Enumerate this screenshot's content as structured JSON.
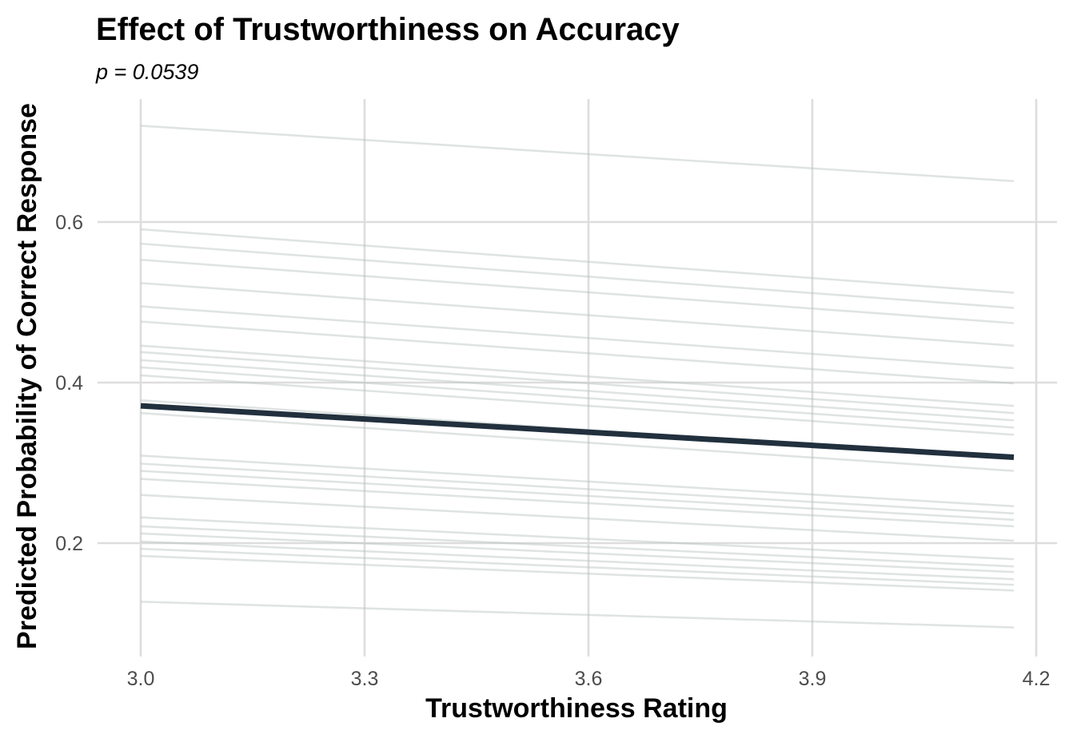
{
  "chart_data": {
    "type": "line",
    "title": "Effect of Trustworthiness on Accuracy",
    "subtitle": "p = 0.0539",
    "xlabel": "Trustworthiness Rating",
    "ylabel": "Predicted Probability of Correct Response",
    "xlim": [
      2.94,
      4.22
    ],
    "ylim": [
      0.085,
      0.75
    ],
    "x_ticks": [
      3.0,
      3.3,
      3.6,
      3.9,
      4.2
    ],
    "x_tick_labels": [
      "3.0",
      "3.3",
      "3.6",
      "3.9",
      "4.2"
    ],
    "y_ticks": [
      0.2,
      0.4,
      0.6
    ],
    "y_tick_labels": [
      "0.2",
      "0.4",
      "0.6"
    ],
    "grid": true,
    "legend": "none",
    "x_range": [
      3.0,
      4.17
    ],
    "overall": {
      "x": [
        3.0,
        4.17
      ],
      "values": [
        0.371,
        0.307
      ]
    },
    "subject_lines": [
      {
        "values": [
          0.72,
          0.651
        ]
      },
      {
        "values": [
          0.591,
          0.512
        ]
      },
      {
        "values": [
          0.573,
          0.493
        ]
      },
      {
        "values": [
          0.553,
          0.474
        ]
      },
      {
        "values": [
          0.524,
          0.446
        ]
      },
      {
        "values": [
          0.495,
          0.418
        ]
      },
      {
        "values": [
          0.476,
          0.399
        ]
      },
      {
        "values": [
          0.446,
          0.371
        ]
      },
      {
        "values": [
          0.438,
          0.362
        ]
      },
      {
        "values": [
          0.428,
          0.353
        ]
      },
      {
        "values": [
          0.419,
          0.344
        ]
      },
      {
        "values": [
          0.409,
          0.335
        ]
      },
      {
        "values": [
          0.378,
          0.306
        ]
      },
      {
        "values": [
          0.362,
          0.29
        ]
      },
      {
        "values": [
          0.309,
          0.246
        ]
      },
      {
        "values": [
          0.299,
          0.237
        ]
      },
      {
        "values": [
          0.29,
          0.229
        ]
      },
      {
        "values": [
          0.28,
          0.221
        ]
      },
      {
        "values": [
          0.26,
          0.203
        ]
      },
      {
        "values": [
          0.232,
          0.18
        ]
      },
      {
        "values": [
          0.221,
          0.171
        ]
      },
      {
        "values": [
          0.212,
          0.164
        ]
      },
      {
        "values": [
          0.202,
          0.155
        ]
      },
      {
        "values": [
          0.193,
          0.148
        ]
      },
      {
        "values": [
          0.184,
          0.141
        ]
      },
      {
        "values": [
          0.127,
          0.095
        ]
      }
    ]
  }
}
